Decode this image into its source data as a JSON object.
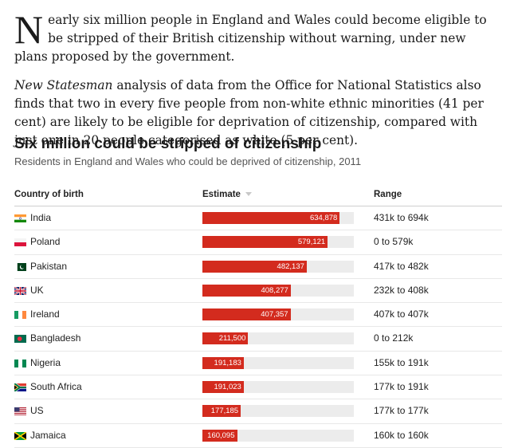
{
  "article": {
    "dropcap": "N",
    "para1_rest": "early six million people in England and Wales could become eligible to be stripped of their British citizenship without warning, under new plans proposed by the government.",
    "para2_italic": "New Statesman",
    "para2_rest": " analysis of data from the Office for National Statistics also finds that two in every five people from non-white ethnic minorities (41 per cent) are likely to be eligible for deprivation of citizenship, compared with just one in 20 people categorised as white (5 per cent)."
  },
  "chart_data": {
    "type": "table",
    "title": "Six million could be stripped of citizenship",
    "subtitle": "Residents in England and Wales who could be deprived of citizenship, 2011",
    "columns": [
      "Country of birth",
      "Estimate",
      "Range"
    ],
    "max_value": 700000,
    "rows": [
      {
        "country": "India",
        "flag": "india-flag",
        "value": 634878,
        "label": "634,878",
        "range": "431k to 694k"
      },
      {
        "country": "Poland",
        "flag": "poland-flag",
        "value": 579121,
        "label": "579,121",
        "range": "0 to 579k"
      },
      {
        "country": "Pakistan",
        "flag": "pakistan-flag",
        "value": 482137,
        "label": "482,137",
        "range": "417k to 482k"
      },
      {
        "country": "UK",
        "flag": "uk-flag",
        "value": 408277,
        "label": "408,277",
        "range": "232k to 408k"
      },
      {
        "country": "Ireland",
        "flag": "ireland-flag",
        "value": 407357,
        "label": "407,357",
        "range": "407k to 407k"
      },
      {
        "country": "Bangladesh",
        "flag": "bangladesh-flag",
        "value": 211500,
        "label": "211,500",
        "range": "0 to 212k"
      },
      {
        "country": "Nigeria",
        "flag": "nigeria-flag",
        "value": 191183,
        "label": "191,183",
        "range": "155k to 191k"
      },
      {
        "country": "South Africa",
        "flag": "south-africa-flag",
        "value": 191023,
        "label": "191,023",
        "range": "177k to 191k"
      },
      {
        "country": "US",
        "flag": "us-flag",
        "value": 177185,
        "label": "177,185",
        "range": "177k to 177k"
      },
      {
        "country": "Jamaica",
        "flag": "jamaica-flag",
        "value": 160095,
        "label": "160,095",
        "range": "160k to 160k"
      }
    ],
    "colors": {
      "bar": "#d32b1e",
      "track": "#ececec"
    }
  }
}
